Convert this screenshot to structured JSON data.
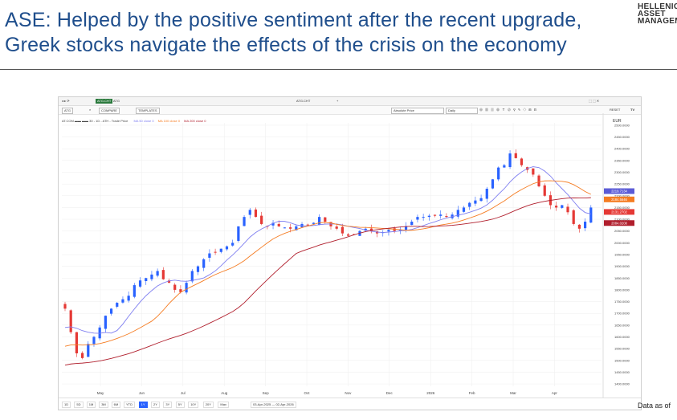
{
  "header": {
    "title_line1": "ASE: Helped by the positive sentiment after the recent upgrade,",
    "title_line2": "Greek stocks navigate the effects of the crisis on the economy",
    "logo_line1": "HELLENIC",
    "logo_line2": "ASSET",
    "logo_line3": "MANAGEMENT",
    "footer_note": "Data as of"
  },
  "toolbar": {
    "symbol": "ATG.CHT",
    "symbol_search": "ATG",
    "tab_label": "ATG.CHT",
    "compare": "COMPARE",
    "templates": "TEMPLATES",
    "price_type": "Absolute Price",
    "interval": "Daily",
    "reset": "RESET"
  },
  "legend": {
    "instrument": "ATG.CHT",
    "tv": "TV",
    "text": "AT.COM ▬▬ ▬▬ 30 - 1D - ATH - Trade Price",
    "ma50": "MA 50 close 0",
    "ma100": "MA 100 close 0",
    "ma200": "MA 200 close 0"
  },
  "colors": {
    "up": "#2962ff",
    "down": "#e53935",
    "ma50": "#7e7ef0",
    "ma100": "#f57c22",
    "ma200": "#b01e2c",
    "grid": "#eeeeee"
  },
  "timeframes": [
    "1D",
    "5D",
    "1M",
    "3M",
    "6M",
    "YTD",
    "1Y",
    "2Y",
    "3Y",
    "5Y",
    "10Y",
    "20Y",
    "Max"
  ],
  "active_timeframe": "1Y",
  "date_range": "03-Apr-2025 — 02-Apr-2026",
  "chart_data": {
    "type": "candlestick",
    "title": "ATG.CHT",
    "currency": "EUR",
    "xlabel": "",
    "ylabel": "EUR",
    "ylim": [
      1390,
      2510
    ],
    "y_ticks": [
      2500,
      2450,
      2400,
      2350,
      2300,
      2250,
      2200,
      2150,
      2100,
      2050,
      2000,
      1950,
      1900,
      1850,
      1800,
      1750,
      1700,
      1650,
      1600,
      1550,
      1500,
      1450,
      1400
    ],
    "x_labels": [
      "May",
      "Jun",
      "Jul",
      "Aug",
      "Sep",
      "Oct",
      "Nov",
      "Dec",
      "2026",
      "Feb",
      "Mar",
      "Apr"
    ],
    "close": [
      1720,
      1620,
      1530,
      1510,
      1570,
      1600,
      1640,
      1690,
      1720,
      1745,
      1760,
      1775,
      1820,
      1840,
      1850,
      1865,
      1880,
      1845,
      1830,
      1800,
      1790,
      1830,
      1880,
      1900,
      1930,
      1955,
      1960,
      1975,
      1985,
      2000,
      2070,
      2110,
      2140,
      2110,
      2080,
      2070,
      2085,
      2070,
      2065,
      2060,
      2070,
      2080,
      2075,
      2085,
      2110,
      2090,
      2070,
      2060,
      2040,
      2030,
      2035,
      2050,
      2060,
      2050,
      2040,
      2045,
      2055,
      2050,
      2055,
      2070,
      2090,
      2110,
      2110,
      2115,
      2115,
      2120,
      2110,
      2120,
      2140,
      2150,
      2170,
      2180,
      2190,
      2230,
      2270,
      2320,
      2330,
      2380,
      2360,
      2330,
      2310,
      2290,
      2240,
      2200,
      2160,
      2150,
      2160,
      2130,
      2080,
      2060,
      2090,
      2150
    ],
    "ma50_legend": 2219.7134,
    "ma100_legend": 2184.5646,
    "ma200_legend": 2084.0208,
    "price_labels": [
      {
        "label": "2219.7134",
        "value": 2219.7134,
        "color": "#5b5bd6"
      },
      {
        "label": "2184.5646",
        "value": 2184.5646,
        "color": "#f57c22"
      },
      {
        "label": "2131.2702",
        "value": 2131.2702,
        "color": "#e53935"
      },
      {
        "label": "2084.0208",
        "value": 2084.0208,
        "color": "#b01e2c"
      }
    ],
    "series": [
      {
        "name": "MA 50",
        "values_desc": "rolling mean 50"
      },
      {
        "name": "MA 100",
        "values_desc": "rolling mean 100"
      },
      {
        "name": "MA 200",
        "values_desc": "rolling mean 200"
      }
    ]
  }
}
